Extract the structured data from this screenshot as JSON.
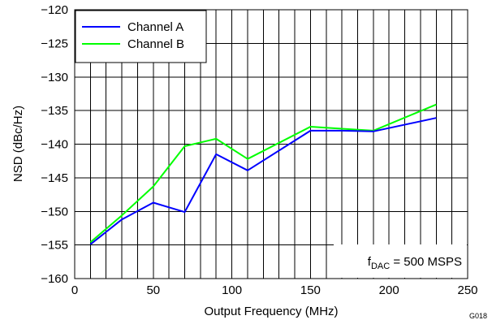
{
  "chart_data": {
    "type": "line",
    "xlabel": "Output Frequency (MHz)",
    "ylabel": "NSD (dBc/Hz)",
    "xlim": [
      0,
      250
    ],
    "ylim": [
      -160,
      -120
    ],
    "x_major_ticks": [
      0,
      50,
      100,
      150,
      200,
      250
    ],
    "y_ticks": [
      -160,
      -155,
      -150,
      -145,
      -140,
      -135,
      -130,
      -125,
      -120
    ],
    "x_tick_labels": [
      "0",
      "50",
      "100",
      "150",
      "200",
      "250"
    ],
    "y_tick_labels": [
      "−160",
      "−155",
      "−150",
      "−145",
      "−140",
      "−135",
      "−130",
      "−125",
      "−120"
    ],
    "grid": true,
    "legend_position": "top-left",
    "series": [
      {
        "name": "Channel A",
        "color": "#0000ff",
        "x": [
          10,
          30,
          50,
          70,
          90,
          110,
          150,
          170,
          190,
          230
        ],
        "y": [
          -154.9,
          -151.2,
          -148.7,
          -150.1,
          -141.5,
          -143.9,
          -138.0,
          -138.0,
          -138.1,
          -136.1
        ]
      },
      {
        "name": "Channel B",
        "color": "#00ff00",
        "x": [
          10,
          30,
          50,
          70,
          90,
          110,
          150,
          170,
          190,
          230
        ],
        "y": [
          -154.6,
          -150.6,
          -146.3,
          -140.3,
          -139.2,
          -142.2,
          -137.4,
          -137.7,
          -138.0,
          -134.1
        ]
      }
    ],
    "annotation": {
      "main": "f",
      "sub": "DAC",
      "rest": " = 500 MSPS"
    },
    "figure_id": "G018"
  }
}
